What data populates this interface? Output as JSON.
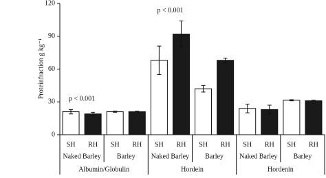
{
  "chart_data": {
    "type": "bar",
    "y_label": "Proteinfraction g kg⁻¹",
    "categories": [
      "Naked Barley",
      "Barley",
      "Naked Barley",
      "Barley",
      "Naked Barley",
      "Barley"
    ],
    "groups": [
      "Albumin/Globulin",
      "Hordein",
      "Hordenin"
    ],
    "series": [
      {
        "name": "SH",
        "color": "#ffffff",
        "values": [
          21,
          21,
          68,
          42,
          24,
          31.5
        ],
        "errors": [
          2,
          0.5,
          13,
          3,
          4,
          0.5
        ]
      },
      {
        "name": "RH",
        "color": "#1a1a1a",
        "values": [
          19,
          21,
          92,
          68,
          23,
          31
        ],
        "errors": [
          1.5,
          0.5,
          12,
          2,
          4,
          0.5
        ]
      }
    ],
    "annotations": [
      {
        "text": "p < 0.001",
        "category": 0
      },
      {
        "text": "p < 0.001",
        "category": 2
      }
    ],
    "ylim": [
      0,
      120
    ],
    "yticks": [
      0,
      30,
      60,
      90,
      120
    ]
  }
}
